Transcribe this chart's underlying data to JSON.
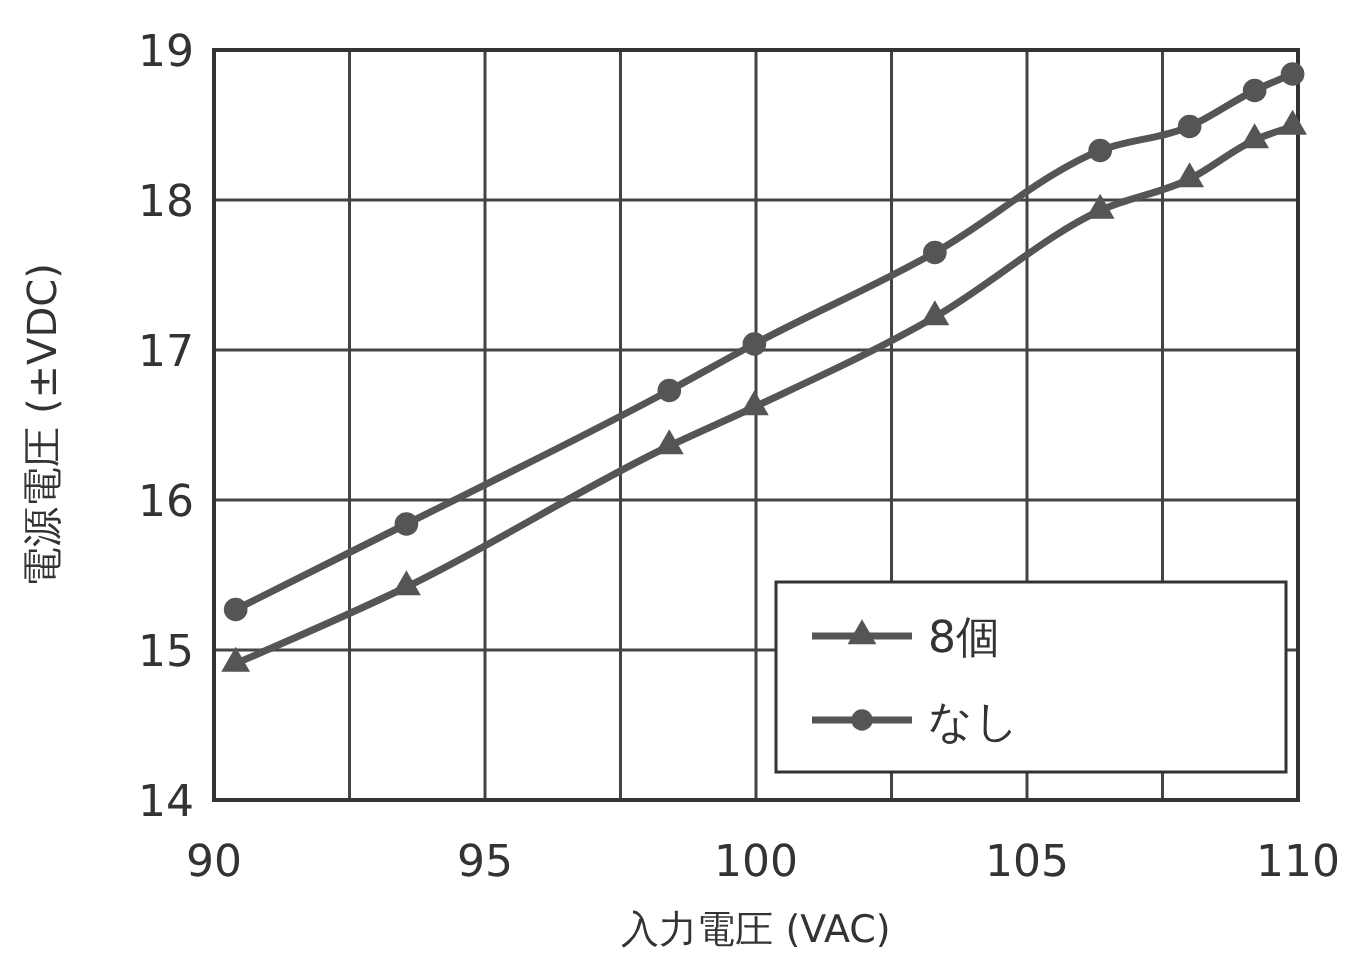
{
  "chart_data": {
    "type": "line",
    "xlabel": "入力電圧 (VAC)",
    "ylabel": "電源電圧 (±VDC)",
    "x": [
      90.4,
      93.55,
      98.4,
      99.97,
      103.3,
      106.35,
      108.0,
      109.2,
      109.9
    ],
    "series": [
      {
        "name": "8個",
        "color": "#555555",
        "marker": "triangle",
        "values": [
          14.91,
          15.42,
          16.36,
          16.62,
          17.22,
          17.93,
          18.14,
          18.4,
          18.49
        ]
      },
      {
        "name": "なし",
        "color": "#555555",
        "marker": "circle",
        "values": [
          15.27,
          15.84,
          16.73,
          17.04,
          17.65,
          18.33,
          18.49,
          18.73,
          18.84
        ]
      }
    ],
    "xlim": [
      90,
      110
    ],
    "xticks": [
      90,
      95,
      100,
      105,
      110
    ],
    "ylim": [
      14,
      19
    ],
    "yticks": [
      14,
      15,
      16,
      17,
      18,
      19
    ],
    "grid": true,
    "legend": "bottom right",
    "line_style": "solid"
  }
}
